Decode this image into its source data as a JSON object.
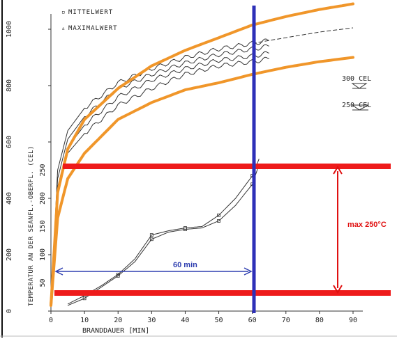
{
  "chart_data": {
    "type": "line",
    "xlabel": "BRANDDAUER  [MIN]",
    "ylabel": "TEMPERATUR AN DER SEANFL.-OBERFL. (CEL)",
    "xlim": [
      0,
      90
    ],
    "ylim": [
      0,
      1000
    ],
    "x_ticks": [
      "0",
      "10",
      "20",
      "30",
      "40",
      "50",
      "60",
      "70",
      "80",
      "90"
    ],
    "y_ticks_left": [
      "0",
      "200",
      "400",
      "600",
      "800",
      "1000"
    ],
    "y_ticks_inner": [
      "50",
      "100",
      "150",
      "200",
      "250"
    ],
    "legend": [
      {
        "symbol": "▫",
        "label": "MITTELWERT"
      },
      {
        "symbol": "▵",
        "label": "MAXIMALWERT"
      }
    ],
    "label_300": "300 CEL",
    "label_250": "250 CEL",
    "furnace_upper": {
      "x": [
        0,
        2,
        5,
        10,
        20,
        30,
        40,
        50,
        60,
        70,
        80,
        90
      ],
      "y": [
        20,
        420,
        575,
        680,
        790,
        870,
        925,
        970,
        1015,
        1045,
        1070,
        1090
      ]
    },
    "furnace_lower": {
      "x": [
        0,
        2,
        5,
        10,
        20,
        30,
        40,
        50,
        60,
        70,
        80,
        90
      ],
      "y": [
        20,
        330,
        470,
        560,
        680,
        740,
        785,
        810,
        840,
        865,
        885,
        900
      ]
    },
    "surface_series": [
      {
        "x": [
          0,
          2,
          5,
          10,
          20,
          30,
          40,
          50,
          60,
          65
        ],
        "y": [
          20,
          500,
          640,
          720,
          810,
          860,
          900,
          930,
          950,
          960
        ]
      },
      {
        "x": [
          0,
          2,
          5,
          10,
          20,
          30,
          40,
          50,
          60,
          65
        ],
        "y": [
          20,
          470,
          610,
          690,
          790,
          840,
          880,
          910,
          930,
          940
        ]
      },
      {
        "x": [
          0,
          2,
          5,
          10,
          20,
          30,
          40,
          50,
          60,
          65
        ],
        "y": [
          20,
          440,
          580,
          660,
          760,
          820,
          860,
          890,
          905,
          915
        ]
      },
      {
        "x": [
          0,
          2,
          5,
          10,
          20,
          30,
          40,
          50,
          60,
          65
        ],
        "y": [
          20,
          410,
          560,
          630,
          730,
          790,
          840,
          870,
          885,
          895
        ]
      },
      {
        "x": [
          60,
          70,
          80,
          90
        ],
        "y": [
          950,
          970,
          990,
          1005
        ]
      }
    ],
    "seam_series": [
      {
        "x": [
          5,
          10,
          15,
          20,
          25,
          30,
          35,
          40,
          45,
          50,
          55,
          60,
          62
        ],
        "y": [
          25,
          55,
          90,
          130,
          185,
          270,
          285,
          295,
          300,
          340,
          400,
          480,
          540
        ]
      },
      {
        "x": [
          5,
          10,
          15,
          20,
          25,
          30,
          35,
          40,
          45,
          50,
          55,
          60,
          62
        ],
        "y": [
          20,
          45,
          85,
          125,
          175,
          255,
          280,
          290,
          295,
          320,
          375,
          450,
          520
        ]
      }
    ],
    "annotations": {
      "duration_label": "60 min",
      "max_label": "max 250°C",
      "vertical_line_x": 60,
      "top_red_y": 555,
      "bottom_red_y": 50,
      "arrow_x": 85
    },
    "colors": {
      "furnace": "#f0962a",
      "red": "#ee1b1b",
      "blue": "#2e30b8",
      "curves": "#333333",
      "annot_blue": "#2e3eb0",
      "annot_red": "#e01010"
    }
  }
}
